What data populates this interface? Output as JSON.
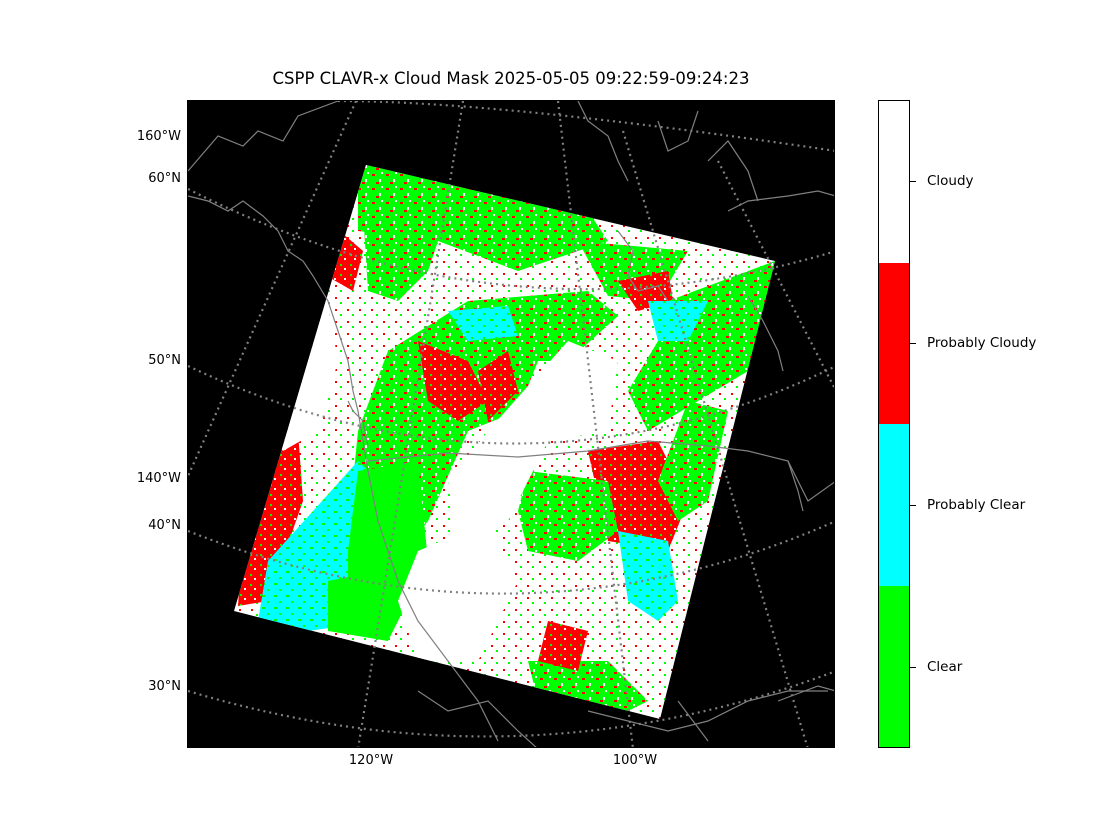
{
  "title": "CSPP CLAVR-x Cloud Mask 2025-05-05 09:22:59-09:24:23",
  "map": {
    "background": "#000000",
    "coastline_color": "#808080",
    "graticule_color": "#808080",
    "y_labels": [
      "160°W",
      "60°N",
      "50°N",
      "140°W",
      "40°N",
      "30°N"
    ],
    "x_labels": [
      "120°W",
      "100°W"
    ]
  },
  "colorbar": {
    "classes": [
      {
        "label": "Cloudy",
        "color": "#ffffff"
      },
      {
        "label": "Probably Cloudy",
        "color": "#ff0000"
      },
      {
        "label": "Probably Clear",
        "color": "#00ffff"
      },
      {
        "label": "Clear",
        "color": "#00ff00"
      }
    ]
  }
}
